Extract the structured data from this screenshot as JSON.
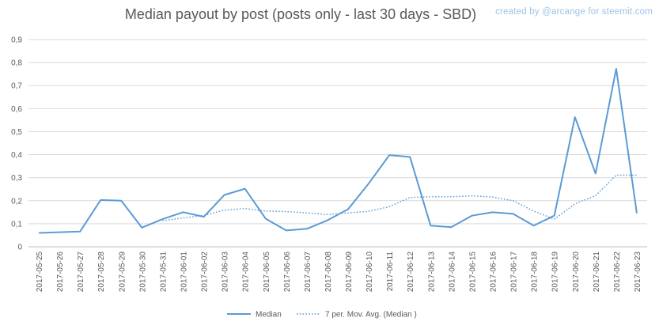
{
  "chart_data": {
    "type": "line",
    "title": "Median payout by post (posts only - last 30 days - SBD)",
    "credit": "created by @arcange for steemit.com",
    "xlabel": "",
    "ylabel": "",
    "ylim": [
      0,
      0.9
    ],
    "yticks": [
      "0",
      "0,1",
      "0,2",
      "0,3",
      "0,4",
      "0,5",
      "0,6",
      "0,7",
      "0,8",
      "0,9"
    ],
    "grid": true,
    "legend_position": "bottom",
    "categories": [
      "2017-05-25",
      "2017-05-26",
      "2017-05-27",
      "2017-05-28",
      "2017-05-29",
      "2017-05-30",
      "2017-05-31",
      "2017-06-01",
      "2017-06-02",
      "2017-06-03",
      "2017-06-04",
      "2017-06-05",
      "2017-06-06",
      "2017-06-07",
      "2017-06-08",
      "2017-06-09",
      "2017-06-10",
      "2017-06-11",
      "2017-06-12",
      "2017-06-13",
      "2017-06-14",
      "2017-06-15",
      "2017-06-16",
      "2017-06-17",
      "2017-06-18",
      "2017-06-19",
      "2017-06-20",
      "2017-06-21",
      "2017-06-22",
      "2017-06-23"
    ],
    "series": [
      {
        "name": "Median",
        "style": "solid",
        "color": "#5b9bd5",
        "values": [
          0.06,
          0.063,
          0.066,
          0.203,
          0.2,
          0.083,
          0.12,
          0.15,
          0.13,
          0.225,
          0.252,
          0.122,
          0.071,
          0.078,
          0.115,
          0.163,
          0.275,
          0.398,
          0.39,
          0.092,
          0.085,
          0.135,
          0.15,
          0.143,
          0.092,
          0.135,
          0.563,
          0.318,
          0.773,
          0.145
        ]
      },
      {
        "name": "7 per. Mov. Avg. (Median )",
        "style": "dotted",
        "color": "#5b9bd5",
        "values": [
          null,
          null,
          null,
          null,
          null,
          null,
          0.113,
          0.125,
          0.136,
          0.159,
          0.166,
          0.155,
          0.153,
          0.147,
          0.14,
          0.147,
          0.154,
          0.174,
          0.214,
          0.217,
          0.217,
          0.221,
          0.216,
          0.2,
          0.155,
          0.12,
          0.186,
          0.222,
          0.311,
          0.311
        ]
      }
    ]
  }
}
